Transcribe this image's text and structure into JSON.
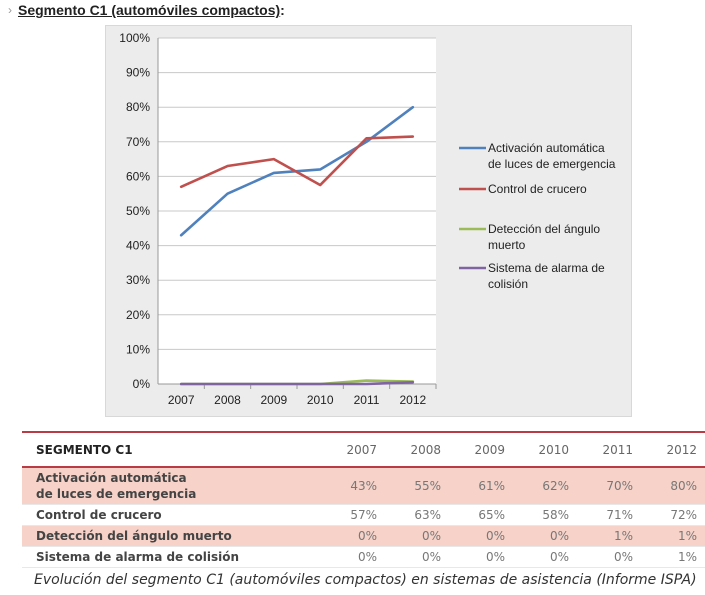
{
  "heading": {
    "chevron": "›",
    "title": "Segmento C1 (automóviles compactos)",
    "suffix": ":"
  },
  "chart_data": {
    "type": "line",
    "title": "",
    "xlabel": "",
    "ylabel": "",
    "x": [
      "2007",
      "2008",
      "2009",
      "2010",
      "2011",
      "2012"
    ],
    "ylim": [
      0,
      100
    ],
    "yticks": [
      0,
      10,
      20,
      30,
      40,
      50,
      60,
      70,
      80,
      90,
      100
    ],
    "ytick_labels": [
      "0%",
      "10%",
      "20%",
      "30%",
      "40%",
      "50%",
      "60%",
      "70%",
      "80%",
      "90%",
      "100%"
    ],
    "grid": true,
    "legend_position": "right",
    "series": [
      {
        "name": "Activación automática de luces de emergencia",
        "legend_lines": [
          "Activación automática",
          "de luces de emergencia"
        ],
        "color": "#4f81bd",
        "values": [
          43,
          55,
          61,
          62,
          70,
          80
        ]
      },
      {
        "name": "Control de crucero",
        "legend_lines": [
          "Control de crucero"
        ],
        "color": "#c0504d",
        "values": [
          57,
          63,
          65,
          57.5,
          71,
          71.5
        ]
      },
      {
        "name": "Detección del ángulo muerto",
        "legend_lines": [
          "Detección del ángulo",
          "muerto"
        ],
        "color": "#9bbb59",
        "values": [
          0,
          0,
          0,
          0,
          1,
          0.7
        ]
      },
      {
        "name": "Sistema de alarma de colisión",
        "legend_lines": [
          "Sistema de alarma de",
          "colisión"
        ],
        "color": "#8064a2",
        "values": [
          0,
          0,
          0,
          0,
          0,
          0.5
        ]
      }
    ]
  },
  "table": {
    "header": "SEGMENTO C1",
    "years": [
      "2007",
      "2008",
      "2009",
      "2010",
      "2011",
      "2012"
    ],
    "rows": [
      {
        "label_lines": [
          "Activación automática",
          "de luces de emergencia"
        ],
        "values": [
          "43%",
          "55%",
          "61%",
          "62%",
          "70%",
          "80%"
        ]
      },
      {
        "label_lines": [
          "Control de crucero"
        ],
        "values": [
          "57%",
          "63%",
          "65%",
          "58%",
          "71%",
          "72%"
        ]
      },
      {
        "label_lines": [
          "Detección del ángulo muerto"
        ],
        "values": [
          "0%",
          "0%",
          "0%",
          "0%",
          "1%",
          "1%"
        ]
      },
      {
        "label_lines": [
          "Sistema de alarma de colisión"
        ],
        "values": [
          "0%",
          "0%",
          "0%",
          "0%",
          "0%",
          "1%"
        ]
      }
    ]
  },
  "caption": "Evolución del segmento C1 (automóviles compactos) en sistemas de asistencia (Informe ISPA)"
}
